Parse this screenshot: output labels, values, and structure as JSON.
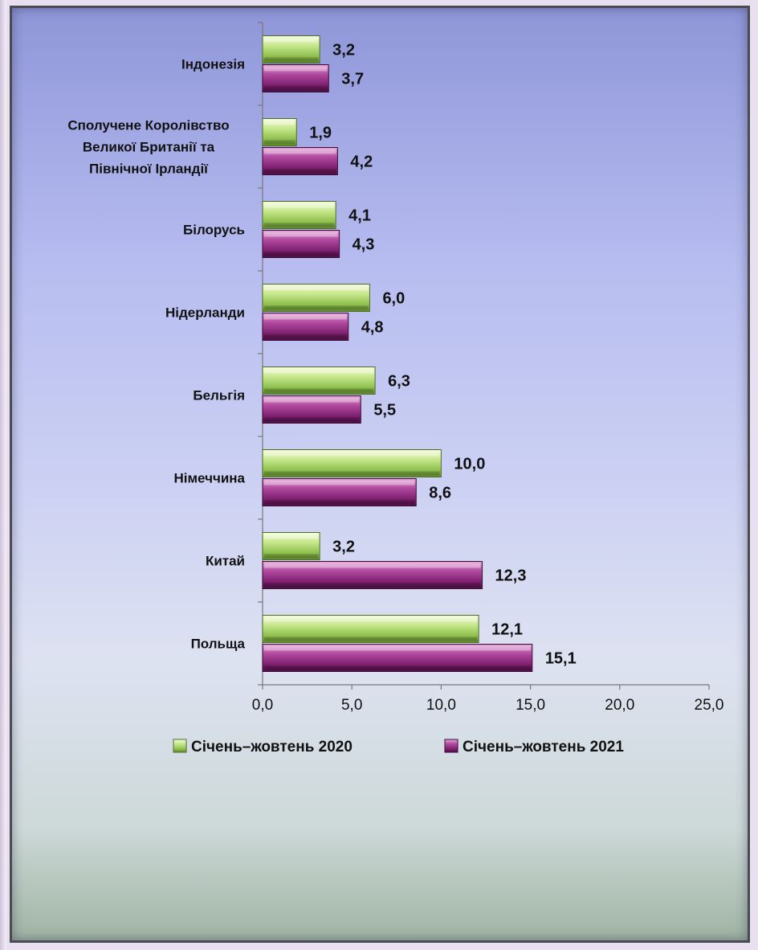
{
  "chart_data": {
    "type": "bar",
    "orientation": "horizontal",
    "categories": [
      "Індонезія",
      "Сполучене Королівство Великої Британії та Північної Ірландії",
      "Білорусь",
      "Нідерланди",
      "Бельгія",
      "Німеччина",
      "Китай",
      "Польща"
    ],
    "category_lines": [
      [
        "Індонезія"
      ],
      [
        "Сполучене Королівство",
        "Великої Британії та",
        "Північної Ірландії"
      ],
      [
        "Білорусь"
      ],
      [
        "Нідерланди"
      ],
      [
        "Бельгія"
      ],
      [
        "Німеччина"
      ],
      [
        "Китай"
      ],
      [
        "Польща"
      ]
    ],
    "series": [
      {
        "name": "Січень–жовтень 2020",
        "values": [
          3.2,
          1.9,
          4.1,
          6.0,
          6.3,
          10.0,
          3.2,
          12.1
        ],
        "labels": [
          "3,2",
          "1,9",
          "4,1",
          "6,0",
          "6,3",
          "10,0",
          "3,2",
          "12,1"
        ],
        "color": "#a9d36a"
      },
      {
        "name": "Січень–жовтень 2021",
        "values": [
          3.7,
          4.2,
          4.3,
          4.8,
          5.5,
          8.6,
          12.3,
          15.1
        ],
        "labels": [
          "3,7",
          "4,2",
          "4,3",
          "4,8",
          "5,5",
          "8,6",
          "12,3",
          "15,1"
        ],
        "color": "#8e2a7e"
      }
    ],
    "xlim": [
      0,
      25
    ],
    "xticks": [
      0,
      5,
      10,
      15,
      20,
      25
    ],
    "xtick_labels": [
      "0,0",
      "5,0",
      "10,0",
      "15,0",
      "20,0",
      "25,0"
    ],
    "legend_position": "bottom",
    "grid": false
  }
}
